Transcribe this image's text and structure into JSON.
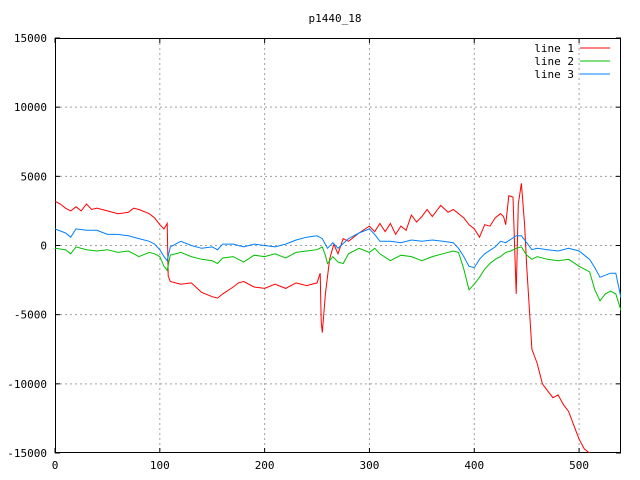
{
  "chart_data": {
    "type": "line",
    "title": "p1440_18",
    "xlabel": "",
    "ylabel": "",
    "xlim": [
      0,
      540
    ],
    "ylim": [
      -15000,
      15000
    ],
    "grid": true,
    "legend_position": "top-right",
    "x_ticks": [
      0,
      100,
      200,
      300,
      400,
      500
    ],
    "y_ticks": [
      -15000,
      -10000,
      -5000,
      0,
      5000,
      10000,
      15000
    ],
    "x_tick_labels": [
      "0",
      "100",
      "200",
      "300",
      "400",
      "500"
    ],
    "y_tick_labels": [
      "-15000",
      "-10000",
      "-5000",
      "0",
      "5000",
      "10000",
      "15000"
    ],
    "series": [
      {
        "name": "line 1",
        "color": "#ff0000",
        "points": [
          [
            0,
            3200
          ],
          [
            5,
            3000
          ],
          [
            10,
            2700
          ],
          [
            15,
            2500
          ],
          [
            20,
            2800
          ],
          [
            25,
            2500
          ],
          [
            30,
            3000
          ],
          [
            35,
            2600
          ],
          [
            40,
            2700
          ],
          [
            50,
            2500
          ],
          [
            60,
            2300
          ],
          [
            70,
            2400
          ],
          [
            75,
            2700
          ],
          [
            80,
            2600
          ],
          [
            90,
            2300
          ],
          [
            95,
            2000
          ],
          [
            100,
            1500
          ],
          [
            104,
            1200
          ],
          [
            107,
            1600
          ],
          [
            108,
            -2200
          ],
          [
            110,
            -2600
          ],
          [
            120,
            -2800
          ],
          [
            130,
            -2700
          ],
          [
            140,
            -3400
          ],
          [
            150,
            -3700
          ],
          [
            155,
            -3800
          ],
          [
            160,
            -3500
          ],
          [
            170,
            -3000
          ],
          [
            175,
            -2700
          ],
          [
            180,
            -2600
          ],
          [
            190,
            -3000
          ],
          [
            200,
            -3100
          ],
          [
            210,
            -2800
          ],
          [
            220,
            -3100
          ],
          [
            230,
            -2700
          ],
          [
            240,
            -2900
          ],
          [
            250,
            -2700
          ],
          [
            253,
            -2000
          ],
          [
            254,
            -5500
          ],
          [
            255,
            -6300
          ],
          [
            258,
            -3500
          ],
          [
            262,
            -1000
          ],
          [
            266,
            100
          ],
          [
            270,
            -600
          ],
          [
            275,
            500
          ],
          [
            280,
            300
          ],
          [
            290,
            900
          ],
          [
            300,
            1400
          ],
          [
            305,
            1000
          ],
          [
            310,
            1600
          ],
          [
            315,
            1000
          ],
          [
            320,
            1600
          ],
          [
            325,
            800
          ],
          [
            330,
            1400
          ],
          [
            335,
            1100
          ],
          [
            340,
            2200
          ],
          [
            345,
            1700
          ],
          [
            350,
            2100
          ],
          [
            355,
            2600
          ],
          [
            360,
            2100
          ],
          [
            365,
            2600
          ],
          [
            368,
            2900
          ],
          [
            375,
            2400
          ],
          [
            380,
            2600
          ],
          [
            390,
            2000
          ],
          [
            395,
            1500
          ],
          [
            400,
            1200
          ],
          [
            405,
            600
          ],
          [
            410,
            1500
          ],
          [
            415,
            1400
          ],
          [
            420,
            2000
          ],
          [
            425,
            2300
          ],
          [
            428,
            2100
          ],
          [
            430,
            1500
          ],
          [
            433,
            3600
          ],
          [
            437,
            3500
          ],
          [
            440,
            -3500
          ],
          [
            442,
            3000
          ],
          [
            445,
            4500
          ],
          [
            448,
            1500
          ],
          [
            450,
            -1500
          ],
          [
            455,
            -7500
          ],
          [
            460,
            -8500
          ],
          [
            465,
            -10000
          ],
          [
            470,
            -10500
          ],
          [
            475,
            -11000
          ],
          [
            480,
            -10800
          ],
          [
            485,
            -11500
          ],
          [
            490,
            -12000
          ],
          [
            495,
            -13000
          ],
          [
            500,
            -14000
          ],
          [
            505,
            -14700
          ],
          [
            510,
            -15000
          ]
        ]
      },
      {
        "name": "line 2",
        "color": "#00c000",
        "points": [
          [
            0,
            -200
          ],
          [
            10,
            -300
          ],
          [
            15,
            -600
          ],
          [
            20,
            -100
          ],
          [
            30,
            -300
          ],
          [
            40,
            -400
          ],
          [
            50,
            -300
          ],
          [
            60,
            -500
          ],
          [
            70,
            -400
          ],
          [
            80,
            -800
          ],
          [
            90,
            -500
          ],
          [
            95,
            -600
          ],
          [
            100,
            -800
          ],
          [
            104,
            -1500
          ],
          [
            107,
            -1800
          ],
          [
            110,
            -700
          ],
          [
            120,
            -500
          ],
          [
            130,
            -800
          ],
          [
            140,
            -1000
          ],
          [
            150,
            -1100
          ],
          [
            155,
            -1300
          ],
          [
            160,
            -900
          ],
          [
            170,
            -800
          ],
          [
            180,
            -1200
          ],
          [
            190,
            -700
          ],
          [
            200,
            -800
          ],
          [
            210,
            -600
          ],
          [
            220,
            -900
          ],
          [
            230,
            -500
          ],
          [
            240,
            -400
          ],
          [
            250,
            -300
          ],
          [
            255,
            -100
          ],
          [
            258,
            -700
          ],
          [
            260,
            -1300
          ],
          [
            265,
            -800
          ],
          [
            270,
            -1200
          ],
          [
            275,
            -1300
          ],
          [
            280,
            -600
          ],
          [
            290,
            -200
          ],
          [
            300,
            -500
          ],
          [
            305,
            -200
          ],
          [
            310,
            -600
          ],
          [
            320,
            -1100
          ],
          [
            330,
            -700
          ],
          [
            340,
            -800
          ],
          [
            350,
            -1100
          ],
          [
            360,
            -800
          ],
          [
            370,
            -600
          ],
          [
            380,
            -400
          ],
          [
            385,
            -500
          ],
          [
            390,
            -1700
          ],
          [
            395,
            -3200
          ],
          [
            400,
            -2800
          ],
          [
            405,
            -2300
          ],
          [
            410,
            -1700
          ],
          [
            415,
            -1300
          ],
          [
            420,
            -1000
          ],
          [
            425,
            -800
          ],
          [
            430,
            -500
          ],
          [
            435,
            -400
          ],
          [
            440,
            -200
          ],
          [
            445,
            -100
          ],
          [
            450,
            -700
          ],
          [
            455,
            -1000
          ],
          [
            460,
            -800
          ],
          [
            470,
            -1000
          ],
          [
            480,
            -1100
          ],
          [
            490,
            -1000
          ],
          [
            500,
            -1500
          ],
          [
            510,
            -1900
          ],
          [
            515,
            -3200
          ],
          [
            520,
            -4000
          ],
          [
            525,
            -3500
          ],
          [
            530,
            -3300
          ],
          [
            535,
            -3500
          ],
          [
            540,
            -4700
          ]
        ]
      },
      {
        "name": "line 3",
        "color": "#0080ff",
        "points": [
          [
            0,
            1200
          ],
          [
            10,
            900
          ],
          [
            15,
            600
          ],
          [
            20,
            1200
          ],
          [
            30,
            1100
          ],
          [
            40,
            1100
          ],
          [
            50,
            800
          ],
          [
            60,
            800
          ],
          [
            70,
            700
          ],
          [
            80,
            500
          ],
          [
            90,
            300
          ],
          [
            95,
            100
          ],
          [
            100,
            -300
          ],
          [
            104,
            -800
          ],
          [
            107,
            -1100
          ],
          [
            110,
            -100
          ],
          [
            120,
            300
          ],
          [
            130,
            0
          ],
          [
            140,
            -200
          ],
          [
            150,
            -100
          ],
          [
            155,
            -300
          ],
          [
            160,
            100
          ],
          [
            170,
            100
          ],
          [
            180,
            -100
          ],
          [
            190,
            100
          ],
          [
            200,
            0
          ],
          [
            210,
            -100
          ],
          [
            220,
            100
          ],
          [
            230,
            400
          ],
          [
            240,
            600
          ],
          [
            250,
            700
          ],
          [
            255,
            500
          ],
          [
            260,
            -200
          ],
          [
            265,
            200
          ],
          [
            270,
            -200
          ],
          [
            280,
            500
          ],
          [
            290,
            900
          ],
          [
            300,
            1200
          ],
          [
            305,
            800
          ],
          [
            310,
            300
          ],
          [
            320,
            300
          ],
          [
            330,
            200
          ],
          [
            340,
            400
          ],
          [
            350,
            300
          ],
          [
            360,
            400
          ],
          [
            370,
            300
          ],
          [
            380,
            200
          ],
          [
            385,
            -200
          ],
          [
            390,
            -800
          ],
          [
            395,
            -1500
          ],
          [
            400,
            -1600
          ],
          [
            405,
            -1000
          ],
          [
            410,
            -600
          ],
          [
            420,
            -100
          ],
          [
            425,
            300
          ],
          [
            430,
            200
          ],
          [
            440,
            700
          ],
          [
            445,
            700
          ],
          [
            450,
            200
          ],
          [
            455,
            -300
          ],
          [
            460,
            -200
          ],
          [
            470,
            -300
          ],
          [
            480,
            -400
          ],
          [
            490,
            -200
          ],
          [
            500,
            -400
          ],
          [
            505,
            -700
          ],
          [
            510,
            -1000
          ],
          [
            515,
            -1600
          ],
          [
            520,
            -2300
          ],
          [
            530,
            -2000
          ],
          [
            535,
            -2000
          ],
          [
            540,
            -3800
          ]
        ]
      }
    ]
  }
}
